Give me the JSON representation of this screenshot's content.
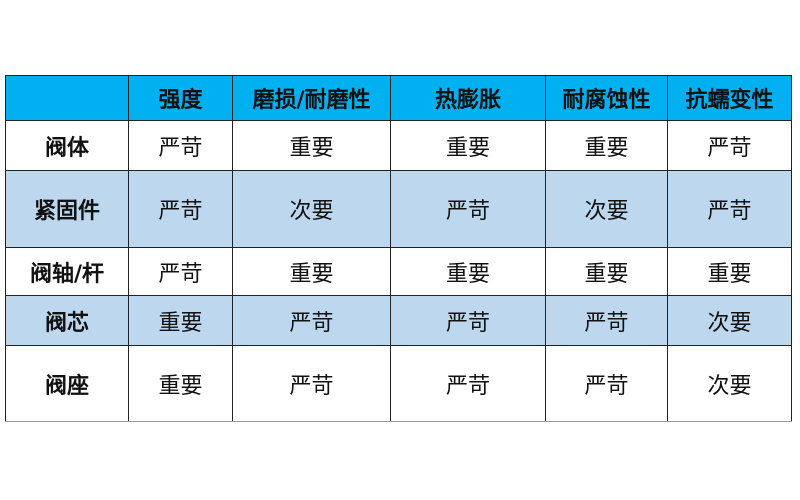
{
  "table": {
    "headers": [
      "",
      "强度",
      "磨损/耐磨性",
      "热膨胀",
      "耐腐蚀性",
      "抗蠕变性"
    ],
    "rows": [
      {
        "name": "阀体",
        "values": [
          "严苛",
          "重要",
          "重要",
          "重要",
          "严苛"
        ]
      },
      {
        "name": "紧固件",
        "values": [
          "严苛",
          "次要",
          "严苛",
          "次要",
          "严苛"
        ]
      },
      {
        "name": "阀轴/杆",
        "values": [
          "严苛",
          "重要",
          "重要",
          "重要",
          "重要"
        ]
      },
      {
        "name": "阀芯",
        "values": [
          "重要",
          "严苛",
          "严苛",
          "严苛",
          "次要"
        ]
      },
      {
        "name": "阀座",
        "values": [
          "重要",
          "严苛",
          "严苛",
          "严苛",
          "次要"
        ]
      }
    ],
    "colors": {
      "header": "#00b0f0",
      "alt_row": "#bdd7ee"
    }
  }
}
